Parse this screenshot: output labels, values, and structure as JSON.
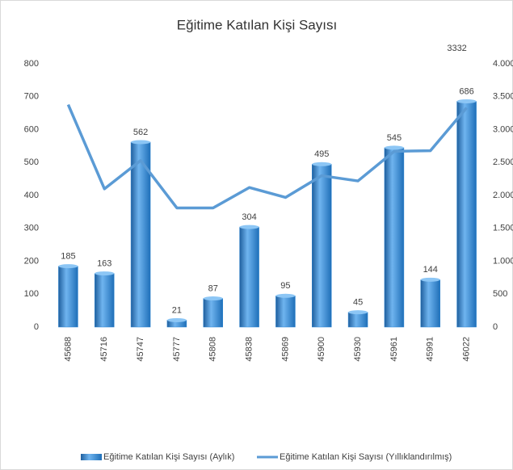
{
  "chart_data": {
    "type": "bar-line",
    "title": "Eğitime Katılan Kişi Sayısı",
    "categories": [
      "45688",
      "45716",
      "45747",
      "45777",
      "45808",
      "45838",
      "45869",
      "45900",
      "45930",
      "45961",
      "45991",
      "46022"
    ],
    "series": [
      {
        "name": "Eğitime Katılan Kişi Sayısı (Aylık)",
        "type": "bar",
        "color": "#2f86d2",
        "axis": "y",
        "values": [
          185,
          163,
          562,
          21,
          87,
          304,
          95,
          495,
          45,
          545,
          144,
          686
        ]
      },
      {
        "name": "Eğitime Katılan Kişi Sayısı (Yıllıklandırılmış)",
        "type": "line",
        "color": "#5b9bd5",
        "axis": "y2",
        "values": [
          3380,
          2100,
          2530,
          1810,
          1810,
          2120,
          1970,
          2300,
          2220,
          2670,
          2680,
          3332
        ],
        "value_labels": [
          null,
          null,
          null,
          null,
          null,
          null,
          null,
          null,
          null,
          null,
          null,
          "3332"
        ]
      }
    ],
    "ylim": [
      0,
      800
    ],
    "yticks": [
      0,
      100,
      200,
      300,
      400,
      500,
      600,
      700,
      800
    ],
    "y2lim": [
      0,
      4000
    ],
    "y2ticks": [
      0,
      500,
      {
        "value": 1000,
        "label": "1.000"
      },
      {
        "value": 1500,
        "label": "1.500"
      },
      {
        "value": 2000,
        "label": "2.000"
      },
      {
        "value": 2500,
        "label": "2.500"
      },
      {
        "value": 3000,
        "label": "3.000"
      },
      {
        "value": 3500,
        "label": "3.500"
      },
      {
        "value": 4000,
        "label": "4.000"
      }
    ],
    "grid": false,
    "legend": "bottom"
  }
}
